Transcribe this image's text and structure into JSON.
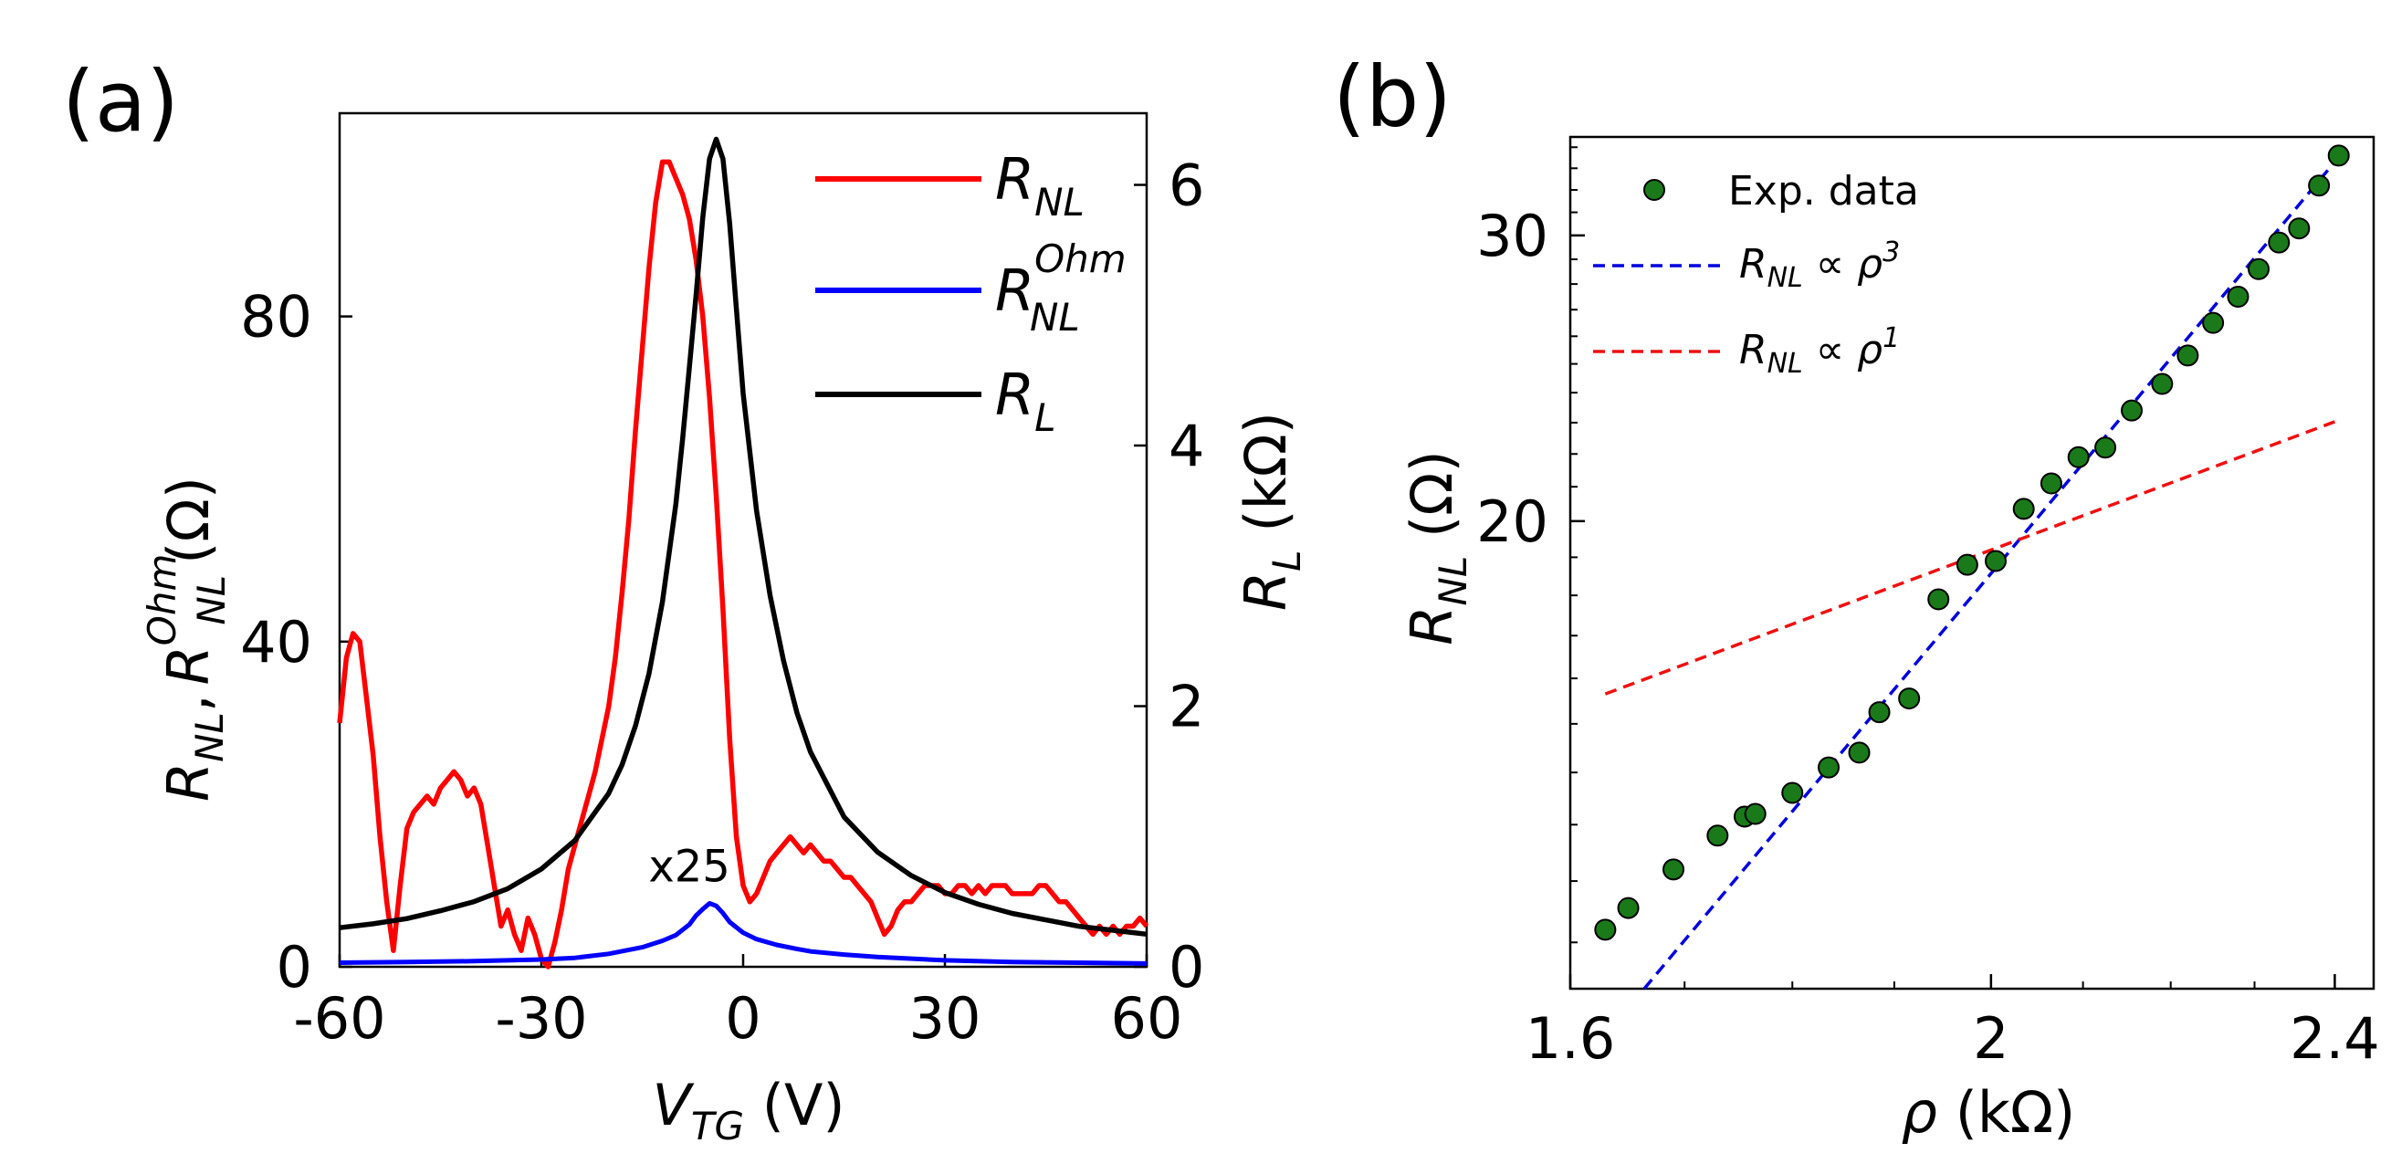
{
  "panels": {
    "a": {
      "label": "(a)"
    },
    "b": {
      "label": "(b)"
    }
  },
  "chart_data": [
    {
      "id": "a",
      "type": "line",
      "xlabel": {
        "main": "V",
        "sub": "TG",
        "unit": " (V)"
      },
      "ylabel_left": {
        "p1": "R",
        "s1": "NL",
        "comma": ",",
        "p2": "R",
        "sup2": "Ohm",
        "s2": "NL",
        "unit": "(Ω)"
      },
      "ylabel_right": {
        "main": "R",
        "sub": "L",
        "unit": " (kΩ)"
      },
      "xlim": [
        -60,
        60
      ],
      "ylim_left": [
        0,
        105
      ],
      "ylim_right": [
        0,
        6.55
      ],
      "xticks": [
        "-60",
        "-30",
        "0",
        "30",
        "60"
      ],
      "xtick_values": [
        -60,
        -30,
        0,
        30,
        60
      ],
      "yticks_left": [
        "0",
        "40",
        "80"
      ],
      "ytick_left_values": [
        0,
        40,
        80
      ],
      "yticks_right": [
        "0",
        "2",
        "4",
        "6"
      ],
      "ytick_right_values": [
        0,
        2,
        4,
        6
      ],
      "annotation": "x25",
      "annotation_at": [
        -8,
        10.5
      ],
      "legend": [
        {
          "main": "R",
          "sub": "NL",
          "sup": "",
          "color": "#ff0000"
        },
        {
          "main": "R",
          "sub": "NL",
          "sup": "Ohm",
          "color": "#0000ff"
        },
        {
          "main": "R",
          "sub": "L",
          "sup": "",
          "color": "#000000"
        }
      ],
      "series": [
        {
          "name": "R_NL",
          "axis": "left",
          "color": "#ff0000",
          "x": [
            -60,
            -59,
            -58,
            -57,
            -56,
            -55,
            -54,
            -53,
            -52,
            -51,
            -50,
            -49,
            -48,
            -47,
            -46,
            -45,
            -44,
            -43,
            -42,
            -41,
            -40,
            -39,
            -38,
            -37,
            -36,
            -35,
            -34,
            -33,
            -32,
            -31,
            -30,
            -29,
            -28,
            -27,
            -26,
            -25,
            -24,
            -23,
            -22,
            -21,
            -20,
            -19,
            -18,
            -17,
            -16,
            -15,
            -14,
            -13,
            -12,
            -11,
            -10,
            -9,
            -8,
            -7,
            -6,
            -5,
            -4,
            -3,
            -2,
            -1,
            0,
            1,
            2,
            3,
            4,
            5,
            6,
            7,
            8,
            9,
            10,
            11,
            12,
            13,
            14,
            15,
            16,
            17,
            18,
            19,
            20,
            21,
            22,
            23,
            24,
            25,
            26,
            27,
            28,
            29,
            30,
            31,
            32,
            33,
            34,
            35,
            36,
            37,
            38,
            39,
            40,
            41,
            42,
            43,
            44,
            45,
            46,
            47,
            48,
            49,
            50,
            51,
            52,
            53,
            54,
            55,
            56,
            57,
            58,
            59,
            60
          ],
          "y": [
            30,
            38,
            41,
            40,
            33,
            26,
            16,
            8,
            2,
            10,
            17,
            19,
            20,
            21,
            20,
            22,
            23,
            24,
            23,
            21,
            22,
            20,
            15,
            10,
            5,
            7,
            4,
            2,
            6,
            4,
            1,
            0,
            3,
            7,
            12,
            15,
            18,
            21,
            24,
            28,
            32,
            38,
            46,
            55,
            66,
            76,
            86,
            94,
            99,
            99,
            97,
            95,
            92,
            87,
            80,
            70,
            58,
            44,
            28,
            16,
            10,
            8,
            9,
            11,
            13,
            14,
            15,
            16,
            15,
            14,
            15,
            14,
            13,
            13,
            12,
            11,
            11,
            10,
            9,
            8,
            6,
            4,
            5,
            7,
            8,
            8,
            9,
            10,
            10,
            10,
            9,
            9,
            10,
            10,
            9,
            10,
            9,
            10,
            10,
            10,
            9,
            9,
            9,
            9,
            10,
            10,
            9,
            8,
            8,
            7,
            6,
            5,
            4,
            5,
            4,
            5,
            4,
            5,
            5,
            6,
            5
          ]
        },
        {
          "name": "R_NL^Ohm (x25)",
          "axis": "left",
          "color": "#0000ff",
          "x": [
            -60,
            -50,
            -40,
            -30,
            -25,
            -20,
            -15,
            -12,
            -10,
            -8,
            -7,
            -6,
            -5,
            -4,
            -3,
            -2,
            0,
            2,
            5,
            8,
            10,
            15,
            20,
            30,
            40,
            50,
            60
          ],
          "y": [
            0.5,
            0.6,
            0.7,
            0.9,
            1.1,
            1.6,
            2.4,
            3.2,
            3.9,
            5.2,
            6.3,
            7.1,
            7.8,
            7.5,
            6.6,
            5.5,
            4.2,
            3.4,
            2.7,
            2.2,
            1.9,
            1.5,
            1.2,
            0.8,
            0.6,
            0.5,
            0.4
          ]
        },
        {
          "name": "R_L",
          "axis": "right",
          "color": "#000000",
          "x": [
            -60,
            -55,
            -50,
            -45,
            -40,
            -35,
            -30,
            -25,
            -20,
            -18,
            -16,
            -14,
            -12,
            -10,
            -9,
            -8,
            -7,
            -6,
            -5,
            -4,
            -3,
            -2,
            -1,
            0,
            2,
            4,
            6,
            8,
            10,
            15,
            20,
            25,
            30,
            35,
            40,
            45,
            50,
            55,
            60
          ],
          "y": [
            0.3,
            0.33,
            0.37,
            0.43,
            0.5,
            0.6,
            0.75,
            0.97,
            1.33,
            1.55,
            1.85,
            2.25,
            2.8,
            3.55,
            4.05,
            4.6,
            5.15,
            5.75,
            6.2,
            6.35,
            6.2,
            5.7,
            5.05,
            4.4,
            3.5,
            2.85,
            2.35,
            1.95,
            1.65,
            1.15,
            0.88,
            0.7,
            0.57,
            0.48,
            0.41,
            0.36,
            0.31,
            0.28,
            0.25
          ]
        }
      ]
    },
    {
      "id": "b",
      "type": "scatter",
      "xscale": "log",
      "yscale": "log",
      "xlabel": {
        "main": "ρ",
        "unit": " (kΩ)"
      },
      "ylabel": {
        "main": "R",
        "sub": "NL",
        "unit": " (Ω)"
      },
      "xlim": [
        1.6,
        2.45
      ],
      "ylim": [
        10.3,
        34.5
      ],
      "xticks": [
        "1.6",
        "2",
        "2.4"
      ],
      "xtick_values": [
        1.6,
        2.0,
        2.4
      ],
      "yticks": [
        "20",
        "30"
      ],
      "ytick_values": [
        20,
        30
      ],
      "legend": [
        {
          "kind": "marker",
          "text": "Exp. data",
          "color": "#1a7a1a"
        },
        {
          "kind": "dash",
          "main": "R",
          "sub": "NL",
          "rel": " ∝ ρ",
          "exp": "3",
          "color": "#0000dd"
        },
        {
          "kind": "dash",
          "main": "R",
          "sub": "NL",
          "rel": " ∝ ρ",
          "exp": "1",
          "color": "#ee1111"
        }
      ],
      "series": [
        {
          "name": "Exp. data",
          "color": "#1a7a1a",
          "x": [
            1.63,
            1.65,
            1.69,
            1.73,
            1.755,
            1.765,
            1.8,
            1.835,
            1.865,
            1.885,
            1.915,
            1.945,
            1.975,
            2.005,
            2.035,
            2.065,
            2.095,
            2.125,
            2.155,
            2.19,
            2.22,
            2.25,
            2.28,
            2.305,
            2.33,
            2.355,
            2.38,
            2.405
          ],
          "y": [
            11.2,
            11.55,
            12.2,
            12.8,
            13.15,
            13.2,
            13.6,
            14.1,
            14.4,
            15.25,
            15.55,
            17.9,
            18.8,
            18.9,
            20.35,
            21.1,
            21.9,
            22.2,
            23.4,
            24.3,
            25.3,
            26.5,
            27.5,
            28.6,
            29.7,
            30.3,
            32.2,
            33.6
          ]
        },
        {
          "name": "fit rho^3",
          "color": "#0000dd",
          "dashed": true,
          "x": [
            1.664,
            2.4
          ],
          "y": [
            10.3,
            33.3
          ]
        },
        {
          "name": "fit rho^1",
          "color": "#ee1111",
          "dashed": true,
          "x": [
            1.63,
            2.4
          ],
          "y": [
            15.65,
            23.03
          ]
        }
      ]
    }
  ]
}
